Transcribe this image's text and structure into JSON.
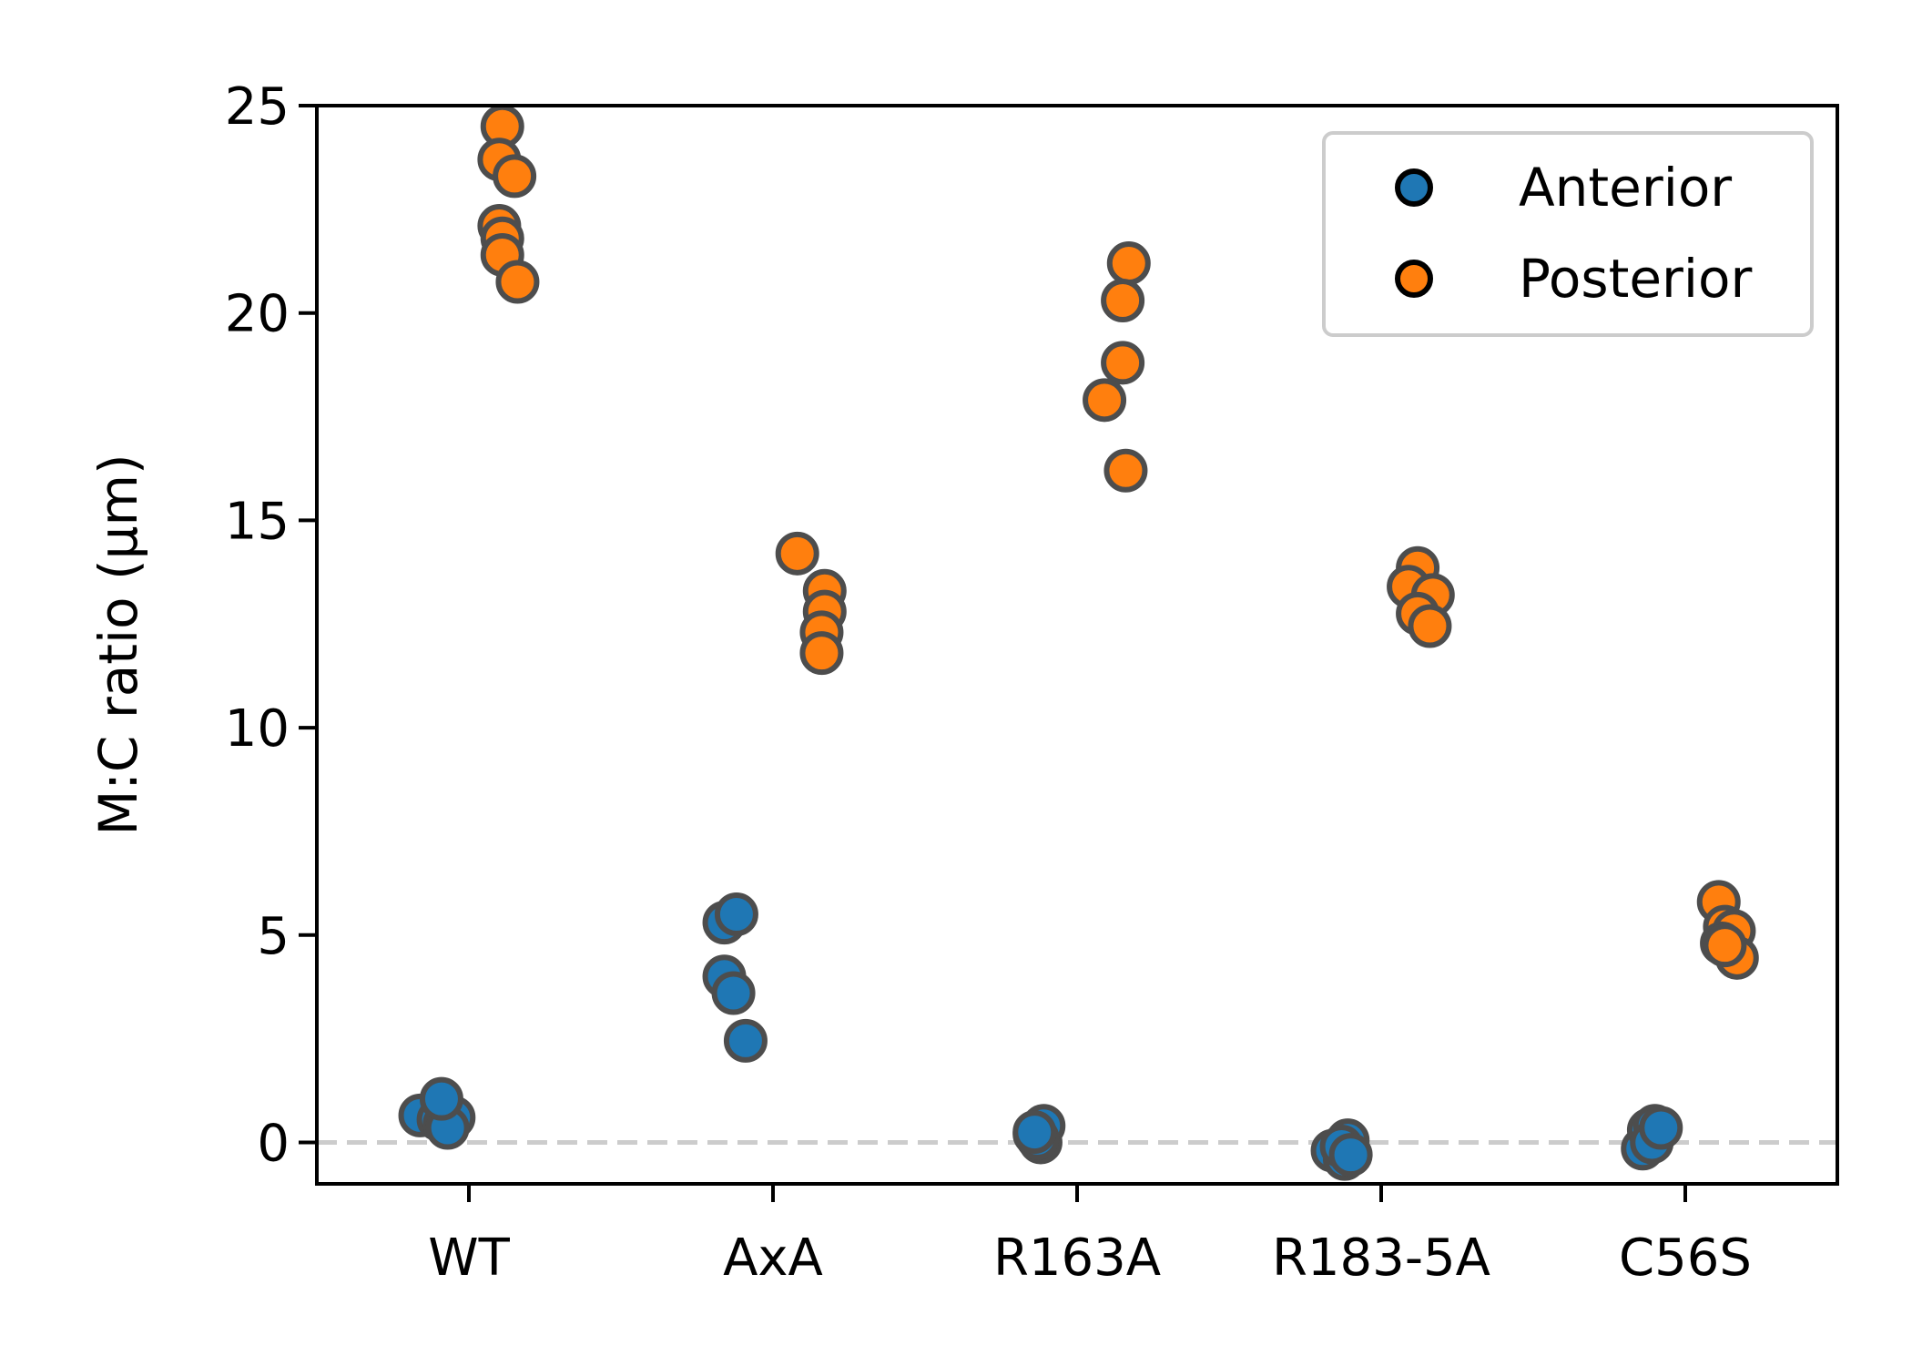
{
  "chart_data": {
    "type": "scatter",
    "title": "",
    "xlabel": "",
    "ylabel": "M:C ratio (μm)",
    "categories": [
      "WT",
      "AxA",
      "R163A",
      "R183-5A",
      "C56S"
    ],
    "ylim": [
      -1,
      25
    ],
    "yticks": [
      0,
      5,
      10,
      15,
      20,
      25
    ],
    "reference_line": {
      "y": 0,
      "style": "dashed",
      "color": "#cccccc"
    },
    "legend": {
      "position": "upper-right"
    },
    "colors": {
      "Anterior": "#1f77b4",
      "Posterior": "#ff7f0e",
      "edge": "#4d4d4d"
    },
    "series": [
      {
        "name": "Anterior",
        "points": [
          {
            "category": "WT",
            "offset": -0.16,
            "y": 0.65
          },
          {
            "category": "WT",
            "offset": -0.1,
            "y": 0.55
          },
          {
            "category": "WT",
            "offset": -0.08,
            "y": 0.45
          },
          {
            "category": "WT",
            "offset": -0.05,
            "y": 0.6
          },
          {
            "category": "WT",
            "offset": -0.07,
            "y": 0.35
          },
          {
            "category": "WT",
            "offset": -0.09,
            "y": 1.05
          },
          {
            "category": "AxA",
            "offset": -0.16,
            "y": 5.3
          },
          {
            "category": "AxA",
            "offset": -0.12,
            "y": 5.5
          },
          {
            "category": "AxA",
            "offset": -0.16,
            "y": 4.0
          },
          {
            "category": "AxA",
            "offset": -0.13,
            "y": 3.6
          },
          {
            "category": "AxA",
            "offset": -0.09,
            "y": 2.45
          },
          {
            "category": "R163A",
            "offset": -0.14,
            "y": 0.2
          },
          {
            "category": "R163A",
            "offset": -0.12,
            "y": 0.0
          },
          {
            "category": "R163A",
            "offset": -0.11,
            "y": 0.4
          },
          {
            "category": "R163A",
            "offset": -0.13,
            "y": 0.1
          },
          {
            "category": "R163A",
            "offset": -0.14,
            "y": 0.25
          },
          {
            "category": "R183-5A",
            "offset": -0.16,
            "y": -0.2
          },
          {
            "category": "R183-5A",
            "offset": -0.12,
            "y": -0.4
          },
          {
            "category": "R183-5A",
            "offset": -0.11,
            "y": 0.05
          },
          {
            "category": "R183-5A",
            "offset": -0.13,
            "y": -0.1
          },
          {
            "category": "R183-5A",
            "offset": -0.1,
            "y": -0.3
          },
          {
            "category": "C56S",
            "offset": -0.14,
            "y": -0.15
          },
          {
            "category": "C56S",
            "offset": -0.12,
            "y": 0.3
          },
          {
            "category": "C56S",
            "offset": -0.1,
            "y": 0.4
          },
          {
            "category": "C56S",
            "offset": -0.11,
            "y": 0.0
          },
          {
            "category": "C56S",
            "offset": -0.08,
            "y": 0.35
          }
        ]
      },
      {
        "name": "Posterior",
        "points": [
          {
            "category": "WT",
            "offset": 0.11,
            "y": 24.5
          },
          {
            "category": "WT",
            "offset": 0.1,
            "y": 23.7
          },
          {
            "category": "WT",
            "offset": 0.15,
            "y": 23.3
          },
          {
            "category": "WT",
            "offset": 0.1,
            "y": 22.1
          },
          {
            "category": "WT",
            "offset": 0.11,
            "y": 21.8
          },
          {
            "category": "WT",
            "offset": 0.11,
            "y": 21.4
          },
          {
            "category": "WT",
            "offset": 0.16,
            "y": 20.75
          },
          {
            "category": "AxA",
            "offset": 0.08,
            "y": 14.2
          },
          {
            "category": "AxA",
            "offset": 0.17,
            "y": 13.3
          },
          {
            "category": "AxA",
            "offset": 0.17,
            "y": 12.8
          },
          {
            "category": "AxA",
            "offset": 0.16,
            "y": 12.3
          },
          {
            "category": "AxA",
            "offset": 0.16,
            "y": 11.8
          },
          {
            "category": "R163A",
            "offset": 0.17,
            "y": 21.2
          },
          {
            "category": "R163A",
            "offset": 0.15,
            "y": 20.3
          },
          {
            "category": "R163A",
            "offset": 0.15,
            "y": 18.8
          },
          {
            "category": "R163A",
            "offset": 0.09,
            "y": 17.9
          },
          {
            "category": "R163A",
            "offset": 0.16,
            "y": 16.2
          },
          {
            "category": "R183-5A",
            "offset": 0.12,
            "y": 13.85
          },
          {
            "category": "R183-5A",
            "offset": 0.09,
            "y": 13.4
          },
          {
            "category": "R183-5A",
            "offset": 0.17,
            "y": 13.2
          },
          {
            "category": "R183-5A",
            "offset": 0.12,
            "y": 12.75
          },
          {
            "category": "R183-5A",
            "offset": 0.16,
            "y": 12.45
          },
          {
            "category": "C56S",
            "offset": 0.11,
            "y": 5.8
          },
          {
            "category": "C56S",
            "offset": 0.13,
            "y": 5.2
          },
          {
            "category": "C56S",
            "offset": 0.16,
            "y": 5.1
          },
          {
            "category": "C56S",
            "offset": 0.12,
            "y": 4.8
          },
          {
            "category": "C56S",
            "offset": 0.17,
            "y": 4.45
          },
          {
            "category": "C56S",
            "offset": 0.13,
            "y": 4.75
          }
        ]
      }
    ]
  }
}
